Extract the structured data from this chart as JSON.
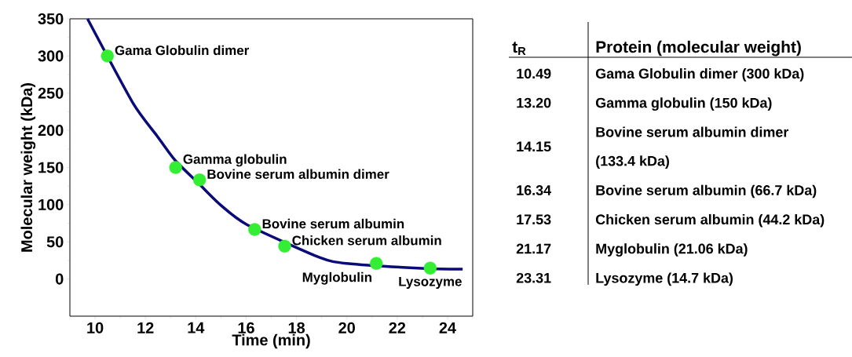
{
  "chart_data": [
    {
      "type": "scatter",
      "xlabel": "Time (min)",
      "ylabel": "Molecular weight (kDa)",
      "xlim": [
        9,
        25
      ],
      "ylim": [
        -50,
        350
      ],
      "xticks": [
        10,
        12,
        14,
        16,
        18,
        20,
        22,
        24
      ],
      "yticks": [
        0,
        50,
        100,
        150,
        200,
        250,
        300,
        350
      ],
      "series": [
        {
          "type": "scatter",
          "color": "#33ee33",
          "marker": "circle",
          "x": [
            10.49,
            13.2,
            14.15,
            16.34,
            17.53,
            21.17,
            23.31
          ],
          "values": [
            300,
            150,
            133.4,
            66.7,
            44.2,
            21.06,
            14.7
          ]
        },
        {
          "type": "line",
          "color": "#0a0a78",
          "x": [
            9.7,
            11.5,
            12.45,
            13.17,
            14.13,
            14.97,
            16.04,
            18.92,
            19.99,
            22.98,
            24.6
          ],
          "values": [
            350,
            237,
            193,
            160,
            128,
            100,
            73,
            29,
            21,
            14.4,
            13.2
          ]
        }
      ],
      "annotations": [
        {
          "text": "Gama Globulin dimer",
          "x": 10.49,
          "y": 300
        },
        {
          "text": "Gamma globulin",
          "x": 13.2,
          "y": 150
        },
        {
          "text": "Bovine serum albumin dimer",
          "x": 14.15,
          "y": 133.4
        },
        {
          "text": "Bovine serum albumin",
          "x": 16.34,
          "y": 66.7
        },
        {
          "text": "Chicken serum albumin",
          "x": 17.53,
          "y": 44.2
        },
        {
          "text": "Myglobulin",
          "x": 21.17,
          "y": 21.06
        },
        {
          "text": "Lysozyme",
          "x": 23.31,
          "y": 14.7
        }
      ]
    },
    {
      "type": "other",
      "annotations": [
        "t$_{R}$",
        "Protein (molecular weight)",
        "10.49",
        "Gama Globulin dimer (300 kDa)",
        "13.20",
        "Gamma globulin (150 kDa)",
        "14.15",
        "Bovine serum albumin dimer (133.4 kDa)",
        "16.34",
        "Bovine serum albumin (66.7 kDa)",
        "17.53",
        "Chicken serum albumin (44.2 kDa)",
        "21.17",
        "Myglobulin (21.06 kDa)",
        "23.31",
        "Lysozyme (14.7 kDa)"
      ]
    }
  ]
}
